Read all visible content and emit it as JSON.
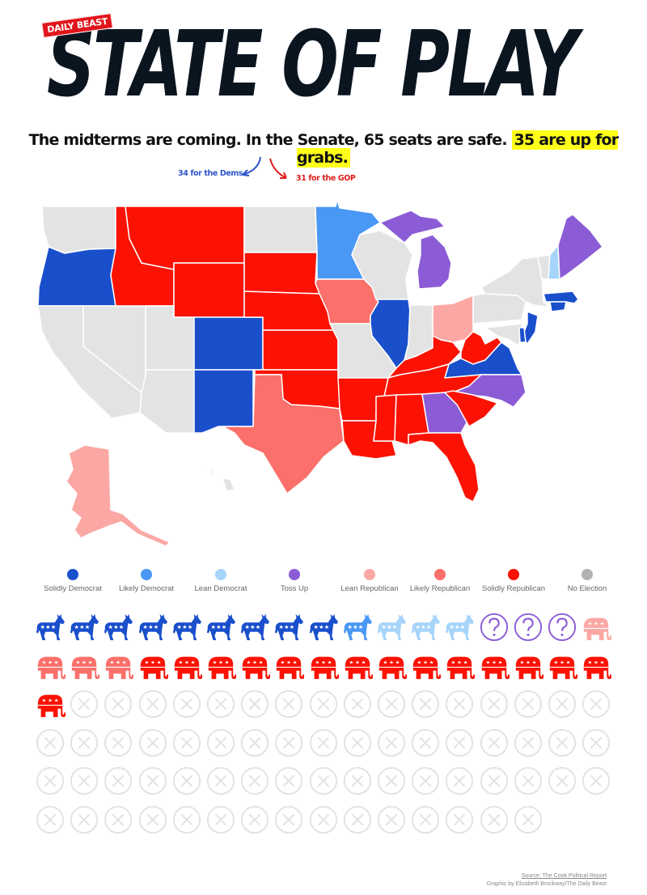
{
  "header": {
    "brand": "DAILY BEAST",
    "title": "STATE OF PLAY"
  },
  "subtitle": {
    "main": "The midterms are coming. In the Senate, 65 seats are safe.",
    "highlight": "35 are up for grabs.",
    "highlight_color": "#ffff1a"
  },
  "annotations": {
    "dems": "34 for the Dems",
    "gop": "31 for the GOP",
    "dem_color": "#2d55c8",
    "gop_color": "#e11b1b"
  },
  "legend": {
    "items": [
      {
        "key": "solid_dem",
        "label": "Solidly Democrat",
        "color": "#1a4fcc"
      },
      {
        "key": "likely_dem",
        "label": "Likely Democrat",
        "color": "#4a98f5"
      },
      {
        "key": "lean_dem",
        "label": "Lean Democrat",
        "color": "#a6d4fb"
      },
      {
        "key": "toss_up",
        "label": "Toss Up",
        "color": "#8b5cd6"
      },
      {
        "key": "lean_rep",
        "label": "Lean Republican",
        "color": "#fba8a4"
      },
      {
        "key": "likely_rep",
        "label": "Likely Republican",
        "color": "#fb706b"
      },
      {
        "key": "solid_rep",
        "label": "Solidly Republican",
        "color": "#fb1203"
      },
      {
        "key": "no_election",
        "label": "No Election",
        "color": "#b3b3b3"
      }
    ]
  },
  "chart_data": {
    "type": "table",
    "title": "STATE OF PLAY",
    "subtitle": "The midterms are coming. In the Senate, 65 seats are safe. 35 are up for grabs.",
    "annotations": [
      "34 for the Dems",
      "31 for the GOP"
    ],
    "legend_position": "bottom",
    "seat_counts": {
      "categories": [
        "Solidly Democrat",
        "Likely Democrat",
        "Lean Democrat",
        "Toss Up",
        "Lean Republican",
        "Likely Republican",
        "Solidly Republican",
        "No Election"
      ],
      "values": [
        9,
        1,
        3,
        3,
        1,
        3,
        15,
        65
      ],
      "total": 100,
      "grid_columns": 17
    },
    "map_states": {
      "solid_dem": [
        "Oregon",
        "Colorado",
        "New Mexico",
        "Illinois",
        "New Jersey",
        "Virginia",
        "Massachusetts",
        "Delaware",
        "Maryland",
        "Rhode Island",
        "Connecticut"
      ],
      "likely_dem": [
        "Minnesota"
      ],
      "lean_dem": [
        "New Hampshire"
      ],
      "toss_up": [
        "Michigan",
        "Georgia",
        "North Carolina",
        "Maine"
      ],
      "lean_rep": [
        "Ohio",
        "Alaska"
      ],
      "likely_rep": [
        "Iowa",
        "Texas"
      ],
      "solid_rep": [
        "Idaho",
        "Montana",
        "Wyoming",
        "South Dakota",
        "Nebraska",
        "Kansas",
        "Oklahoma",
        "Arkansas",
        "Louisiana",
        "Mississippi",
        "Alabama",
        "Tennessee",
        "Kentucky",
        "West Virginia",
        "South Carolina",
        "Florida"
      ],
      "no_election": [
        "Washington",
        "California",
        "Nevada",
        "Utah",
        "Arizona",
        "North Dakota",
        "Wisconsin",
        "Missouri",
        "Indiana",
        "Pennsylvania",
        "New York",
        "Vermont",
        "Hawaii"
      ]
    }
  },
  "footer": {
    "source": "Source: The Cook Political Report",
    "credit": "Graphic by Elizabeth Brockway/The Daily Beast"
  }
}
